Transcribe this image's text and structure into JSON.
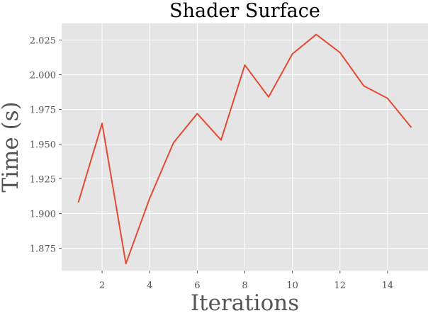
{
  "colors": {
    "plot_background": "#E5E5E5",
    "grid": "#FFFFFF",
    "line": "#E24A33",
    "text": "#555555",
    "title": "#000000"
  },
  "chart_data": {
    "type": "line",
    "title": "Shader Surface",
    "xlabel": "Iterations",
    "ylabel": "Time (s)",
    "grid": true,
    "xlim": [
      0.3,
      15.7
    ],
    "ylim": [
      1.859,
      2.037
    ],
    "xticks": [
      2,
      4,
      6,
      8,
      10,
      12,
      14
    ],
    "yticks": [
      1.875,
      1.9,
      1.925,
      1.95,
      1.975,
      2.0,
      2.025
    ],
    "ytick_labels": [
      "1.875",
      "1.900",
      "1.925",
      "1.950",
      "1.975",
      "2.000",
      "2.025"
    ],
    "xtick_labels": [
      "2",
      "4",
      "6",
      "8",
      "10",
      "12",
      "14"
    ],
    "series": [
      {
        "x": [
          1,
          2,
          3,
          4,
          5,
          6,
          7,
          8,
          9,
          10,
          11,
          12,
          13,
          14,
          15
        ],
        "values": [
          1.908,
          1.965,
          1.864,
          1.911,
          1.951,
          1.972,
          1.953,
          2.007,
          1.984,
          2.015,
          2.029,
          2.016,
          1.992,
          1.983,
          1.962
        ]
      }
    ]
  }
}
